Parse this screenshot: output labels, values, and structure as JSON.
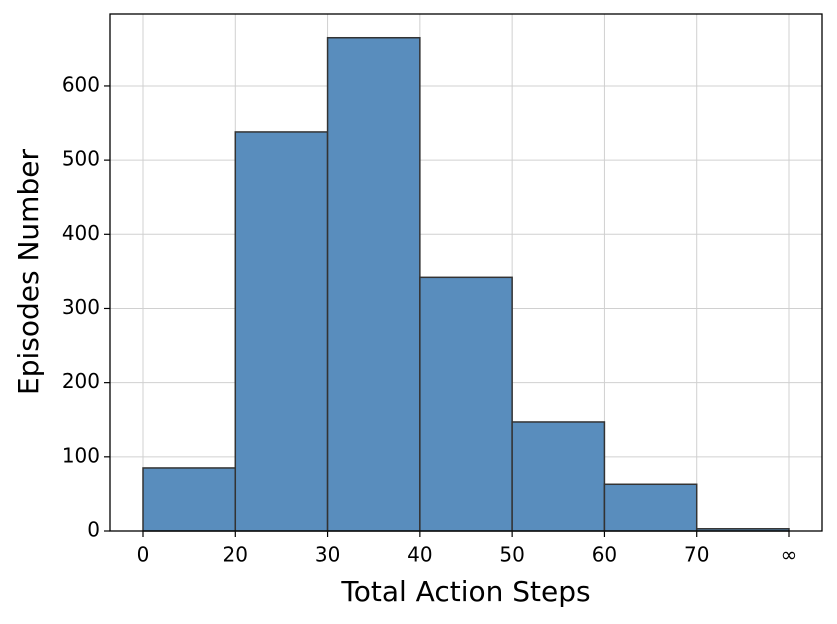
{
  "chart_data": {
    "type": "histogram",
    "xlabel": "Total Action Steps",
    "ylabel": "Episodes Number",
    "bins": [
      "0",
      "20",
      "30",
      "40",
      "50",
      "60",
      "70",
      "∞"
    ],
    "values": [
      85,
      538,
      665,
      342,
      147,
      63,
      3
    ],
    "color": "#598dbd",
    "edgecolor": "#333333",
    "ylim": [
      0,
      697
    ],
    "yticks": [
      0,
      100,
      200,
      300,
      400,
      500,
      600
    ],
    "grid": true
  }
}
